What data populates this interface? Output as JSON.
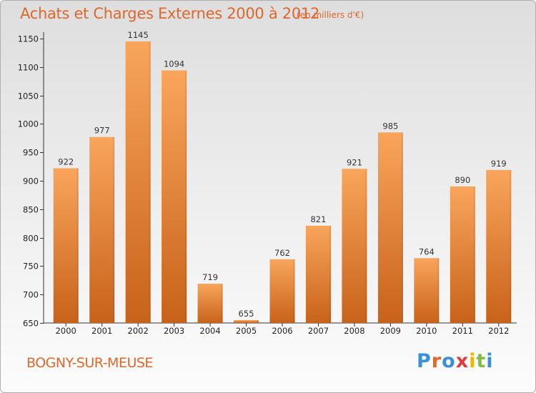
{
  "page": {
    "title": "Achats et Charges Externes 2000 à 2012",
    "subtitle": "(en milliers d'€)",
    "commune": "BOGNY-SUR-MEUSE",
    "logo": {
      "letters": [
        "P",
        "r",
        "o",
        "x",
        "i",
        "t",
        "i"
      ],
      "colors": [
        "#3a8fd6",
        "#e0672b",
        "#3a8fd6",
        "#e23a3a",
        "#f2b400",
        "#7fbf3f",
        "#3a8fd6"
      ]
    }
  },
  "chart_data": {
    "type": "bar",
    "categories": [
      "2000",
      "2001",
      "2002",
      "2003",
      "2004",
      "2005",
      "2006",
      "2007",
      "2008",
      "2009",
      "2010",
      "2011",
      "2012"
    ],
    "values": [
      922,
      977,
      1145,
      1094,
      719,
      655,
      762,
      821,
      921,
      985,
      764,
      890,
      919
    ],
    "ylim": [
      650,
      1160
    ],
    "yticks": [
      650,
      700,
      750,
      800,
      850,
      900,
      950,
      1000,
      1050,
      1100,
      1150
    ],
    "grid": false,
    "bar_color_top": "#f9a55c",
    "bar_color_bottom": "#c8621a",
    "title_color": "#e0672b"
  }
}
